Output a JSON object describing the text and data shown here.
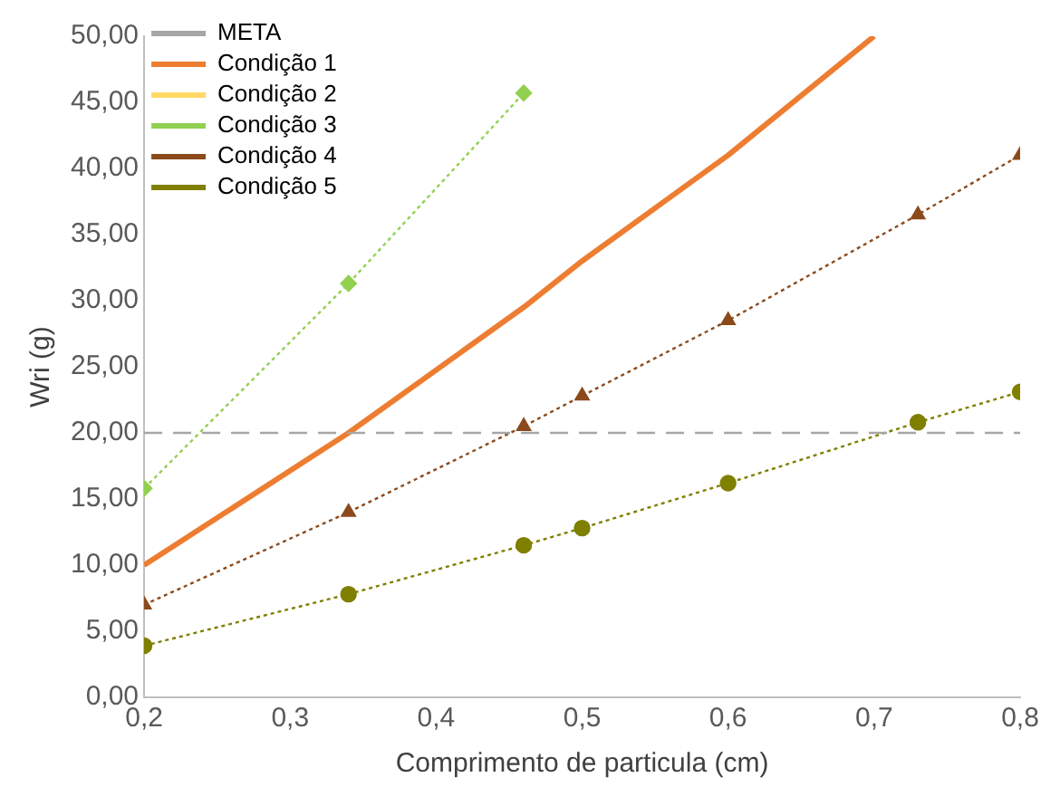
{
  "chart_data": {
    "type": "line",
    "xlabel": "Comprimento de particula (cm)",
    "ylabel": "Wri (g)",
    "xlim": [
      0.2,
      0.8
    ],
    "xticks": [
      {
        "value": 0.2,
        "label": "0,2"
      },
      {
        "value": 0.3,
        "label": "0,3"
      },
      {
        "value": 0.4,
        "label": "0,4"
      },
      {
        "value": 0.5,
        "label": "0,5"
      },
      {
        "value": 0.6,
        "label": "0,6"
      },
      {
        "value": 0.7,
        "label": "0,7"
      },
      {
        "value": 0.8,
        "label": "0,8"
      }
    ],
    "ylim": [
      0,
      50
    ],
    "yticks": [
      {
        "value": 0,
        "label": "0,00"
      },
      {
        "value": 5,
        "label": "5,00"
      },
      {
        "value": 10,
        "label": "10,00"
      },
      {
        "value": 15,
        "label": "15,00"
      },
      {
        "value": 20,
        "label": "20,00"
      },
      {
        "value": 25,
        "label": "25,00"
      },
      {
        "value": 30,
        "label": "30,00"
      },
      {
        "value": 35,
        "label": "35,00"
      },
      {
        "value": 40,
        "label": "40,00"
      },
      {
        "value": 45,
        "label": "45,00"
      },
      {
        "value": 50,
        "label": "50,00"
      }
    ],
    "grid": false,
    "legend": "top left",
    "series": [
      {
        "name": "META",
        "color": "#a6a6a6",
        "x": [
          0.2,
          0.8
        ],
        "values": [
          20,
          20
        ],
        "marker": "none",
        "line_style": "dashed"
      },
      {
        "name": "Condição 1",
        "color": "#ed7d31",
        "x": [
          0.2,
          0.34,
          0.46,
          0.5,
          0.6,
          0.7
        ],
        "values": [
          10,
          20,
          29.5,
          33,
          41,
          50
        ],
        "marker": "none",
        "line_style": "solid"
      },
      {
        "name": "Condição 2",
        "color": "#ffd966",
        "marker": "square",
        "line_style": "dotted"
      },
      {
        "name": "Condição 3",
        "color": "#92d050",
        "x": [
          0.2,
          0.34,
          0.46
        ],
        "values": [
          15.8,
          31.3,
          45.7
        ],
        "marker": "diamond",
        "line_style": "dotted"
      },
      {
        "name": "Condição 4",
        "color": "#8b4a1c",
        "x": [
          0.2,
          0.34,
          0.46,
          0.5,
          0.6,
          0.73,
          0.8
        ],
        "values": [
          7,
          14,
          20.5,
          22.8,
          28.5,
          36.5,
          41
        ],
        "marker": "triangle",
        "line_style": "dotted"
      },
      {
        "name": "Condição 5",
        "color": "#7f7f00",
        "x": [
          0.2,
          0.34,
          0.46,
          0.5,
          0.6,
          0.73,
          0.8
        ],
        "values": [
          3.9,
          7.8,
          11.5,
          12.8,
          16.2,
          20.8,
          23.1
        ],
        "marker": "circle",
        "line_style": "dotted"
      }
    ]
  }
}
